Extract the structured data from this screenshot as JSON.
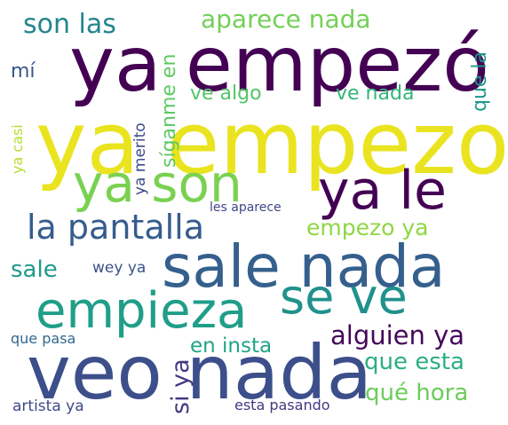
{
  "cloud": {
    "words": [
      {
        "text": "ya empezo",
        "color": "#e9e41f",
        "orientation": "horizontal"
      },
      {
        "text": "ya empezó",
        "color": "#440154",
        "orientation": "horizontal"
      },
      {
        "text": "veo nada",
        "color": "#3c4f8a",
        "orientation": "horizontal"
      },
      {
        "text": "sale nada",
        "color": "#35608d",
        "orientation": "horizontal"
      },
      {
        "text": "ya son",
        "color": "#7ad151",
        "orientation": "horizontal"
      },
      {
        "text": "ya le",
        "color": "#440154",
        "orientation": "horizontal"
      },
      {
        "text": "empieza",
        "color": "#1f9e89",
        "orientation": "horizontal"
      },
      {
        "text": "se ve",
        "color": "#21918c",
        "orientation": "horizontal"
      },
      {
        "text": "la pantalla",
        "color": "#365c8d",
        "orientation": "horizontal"
      },
      {
        "text": "alguien ya",
        "color": "#46085c",
        "orientation": "horizontal"
      },
      {
        "text": "aparece nada",
        "color": "#73d056",
        "orientation": "horizontal"
      },
      {
        "text": "son las",
        "color": "#25858e",
        "orientation": "horizontal"
      },
      {
        "text": "empezo ya",
        "color": "#8fd744",
        "orientation": "horizontal"
      },
      {
        "text": "que esta",
        "color": "#2ab07f",
        "orientation": "horizontal"
      },
      {
        "text": "qué hora",
        "color": "#6ccd5a",
        "orientation": "horizontal"
      },
      {
        "text": "en insta",
        "color": "#20a486",
        "orientation": "horizontal"
      },
      {
        "text": "ve algo",
        "color": "#52c569",
        "orientation": "horizontal"
      },
      {
        "text": "ve nada",
        "color": "#32b67a",
        "orientation": "horizontal"
      },
      {
        "text": "sale",
        "color": "#1f9a8a",
        "orientation": "horizontal"
      },
      {
        "text": "mí",
        "color": "#39568c",
        "orientation": "horizontal"
      },
      {
        "text": "wey ya",
        "color": "#3b528b",
        "orientation": "horizontal"
      },
      {
        "text": "que pasa",
        "color": "#31688e",
        "orientation": "horizontal"
      },
      {
        "text": "artista ya",
        "color": "#3e4a89",
        "orientation": "horizontal"
      },
      {
        "text": "esta pasando",
        "color": "#453781",
        "orientation": "horizontal"
      },
      {
        "text": "les aparece",
        "color": "#414487",
        "orientation": "horizontal"
      },
      {
        "text": "síganme en",
        "color": "#5ec962",
        "orientation": "vertical"
      },
      {
        "text": "que la",
        "color": "#1f968b",
        "orientation": "vertical"
      },
      {
        "text": "ya casi",
        "color": "#b5de2b",
        "orientation": "vertical"
      },
      {
        "text": "ya merito",
        "color": "#3e4989",
        "orientation": "vertical"
      },
      {
        "text": "si ya",
        "color": "#443983",
        "orientation": "vertical"
      }
    ]
  }
}
